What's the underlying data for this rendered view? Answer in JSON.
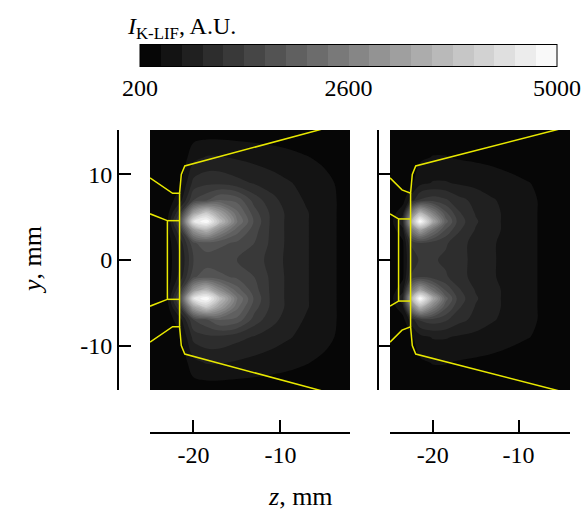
{
  "chart_data": {
    "type": "contour",
    "xlabel": "z, mm",
    "ylabel": "y, mm",
    "ylim": [
      -15.2,
      15.2
    ],
    "yticks": [
      -10,
      0,
      10
    ],
    "colorbar": {
      "title": "I",
      "title_subscript": "K-LIF",
      "title_suffix": ", A.U.",
      "range": [
        200,
        5000
      ],
      "ticks": [
        200,
        2600,
        5000
      ]
    },
    "panels": [
      {
        "xlim": [
          -25,
          -2
        ],
        "xticks": [
          -20,
          -10
        ],
        "x": [
          -25,
          -23,
          -21.5,
          -20,
          -18.5,
          -17,
          -15,
          -13,
          -11,
          -9,
          -7,
          -5,
          -3,
          -2
        ],
        "y": [
          -15.2,
          -12,
          -9,
          -7,
          -5.5,
          -4.5,
          -3.5,
          -2,
          0,
          2,
          3.5,
          4.5,
          5.5,
          7,
          9,
          12,
          15.2
        ],
        "z": [
          [
            250,
            250,
            250,
            300,
            300,
            300,
            300,
            300,
            300,
            300,
            300,
            250,
            250,
            250
          ],
          [
            250,
            250,
            250,
            600,
            700,
            700,
            650,
            600,
            550,
            500,
            450,
            400,
            300,
            250
          ],
          [
            300,
            300,
            400,
            1000,
            1100,
            1100,
            1000,
            900,
            800,
            700,
            600,
            500,
            400,
            300
          ],
          [
            300,
            300,
            600,
            1400,
            1600,
            1900,
            1800,
            1300,
            1000,
            800,
            650,
            550,
            400,
            300
          ],
          [
            300,
            350,
            1200,
            3200,
            4000,
            3200,
            2200,
            1500,
            1100,
            850,
            700,
            550,
            400,
            300
          ],
          [
            300,
            400,
            1600,
            4500,
            5000,
            3800,
            2400,
            1600,
            1100,
            850,
            700,
            550,
            400,
            300
          ],
          [
            300,
            350,
            1200,
            3000,
            3600,
            2800,
            2000,
            1500,
            1100,
            850,
            700,
            550,
            400,
            300
          ],
          [
            300,
            300,
            800,
            1600,
            1800,
            1700,
            1600,
            1400,
            1100,
            850,
            700,
            550,
            400,
            300
          ],
          [
            300,
            300,
            700,
            1400,
            1500,
            1500,
            1400,
            1300,
            1050,
            850,
            700,
            550,
            400,
            300
          ],
          [
            300,
            300,
            800,
            1600,
            1800,
            1700,
            1600,
            1400,
            1100,
            850,
            700,
            550,
            400,
            300
          ],
          [
            300,
            350,
            1200,
            3000,
            3600,
            2800,
            2000,
            1500,
            1100,
            850,
            700,
            550,
            400,
            300
          ],
          [
            300,
            400,
            1600,
            4500,
            5000,
            3800,
            2400,
            1600,
            1100,
            850,
            700,
            550,
            400,
            300
          ],
          [
            300,
            350,
            1200,
            3200,
            4000,
            3200,
            2200,
            1500,
            1100,
            850,
            700,
            550,
            400,
            300
          ],
          [
            300,
            300,
            600,
            1400,
            1600,
            1900,
            1800,
            1300,
            1000,
            800,
            650,
            550,
            400,
            300
          ],
          [
            300,
            300,
            400,
            1000,
            1100,
            1100,
            1000,
            900,
            800,
            700,
            600,
            500,
            400,
            300
          ],
          [
            250,
            250,
            250,
            600,
            700,
            700,
            650,
            600,
            550,
            500,
            450,
            400,
            300,
            250
          ],
          [
            250,
            250,
            250,
            300,
            300,
            300,
            300,
            300,
            300,
            300,
            300,
            250,
            250,
            250
          ]
        ],
        "outline": {
          "x": [
            -25,
            -22.4,
            -21.6,
            -21.4,
            -21.0,
            -4.5,
            null,
            -25,
            -22.4,
            -21.6,
            -21.4,
            -21.0,
            -4.5,
            null,
            -25,
            -23,
            -23,
            -25,
            null,
            -23,
            -21.6,
            null,
            -23,
            -21.6,
            null,
            -21.6,
            -21.6
          ],
          "y": [
            9.6,
            7.8,
            7.8,
            10,
            11,
            15.5,
            null,
            -9.6,
            -7.8,
            -7.8,
            -10,
            -11,
            -15.5,
            null,
            5.4,
            4.6,
            -4.6,
            -5.4,
            null,
            4.6,
            4.6,
            null,
            -4.6,
            -4.6,
            null,
            7.8,
            -7.8
          ]
        }
      },
      {
        "xlim": [
          -25,
          -4
        ],
        "xticks": [
          -20,
          -10
        ],
        "tick_labels": "x",
        "x": [
          -25,
          -23.5,
          -22.5,
          -21.5,
          -20,
          -18.5,
          -17,
          -15,
          -13,
          -11,
          -9,
          -7,
          -5,
          -4
        ],
        "y": [
          -15.2,
          -12,
          -9,
          -7,
          -5.5,
          -4.5,
          -3.5,
          -2,
          0,
          2,
          3.5,
          4.5,
          5.5,
          7,
          9,
          12,
          15.2
        ],
        "z": [
          [
            250,
            250,
            250,
            250,
            300,
            300,
            300,
            300,
            300,
            300,
            250,
            250,
            250,
            250
          ],
          [
            250,
            250,
            300,
            400,
            450,
            450,
            420,
            400,
            380,
            350,
            320,
            300,
            250,
            250
          ],
          [
            300,
            300,
            400,
            600,
            700,
            700,
            650,
            600,
            550,
            500,
            450,
            400,
            300,
            250
          ],
          [
            300,
            350,
            800,
            1200,
            1300,
            1200,
            1000,
            850,
            700,
            600,
            500,
            400,
            300,
            250
          ],
          [
            300,
            600,
            2500,
            3600,
            2600,
            1700,
            1200,
            900,
            750,
            600,
            500,
            400,
            300,
            250
          ],
          [
            300,
            900,
            3500,
            5000,
            3400,
            2000,
            1300,
            950,
            750,
            600,
            500,
            400,
            300,
            250
          ],
          [
            300,
            600,
            2400,
            3200,
            2300,
            1600,
            1200,
            900,
            750,
            600,
            500,
            400,
            300,
            250
          ],
          [
            300,
            400,
            1200,
            1400,
            1300,
            1200,
            1000,
            850,
            700,
            600,
            500,
            400,
            300,
            250
          ],
          [
            300,
            400,
            1000,
            1200,
            1200,
            1100,
            1000,
            850,
            700,
            600,
            500,
            400,
            300,
            250
          ],
          [
            300,
            400,
            1200,
            1400,
            1300,
            1200,
            1000,
            850,
            700,
            600,
            500,
            400,
            300,
            250
          ],
          [
            300,
            600,
            2400,
            3200,
            2300,
            1600,
            1200,
            900,
            750,
            600,
            500,
            400,
            300,
            250
          ],
          [
            300,
            900,
            3500,
            5000,
            3400,
            2000,
            1300,
            950,
            750,
            600,
            500,
            400,
            300,
            250
          ],
          [
            300,
            600,
            2500,
            3600,
            2600,
            1700,
            1200,
            900,
            750,
            600,
            500,
            400,
            300,
            250
          ],
          [
            300,
            350,
            800,
            1200,
            1300,
            1200,
            1000,
            850,
            700,
            600,
            500,
            400,
            300,
            250
          ],
          [
            300,
            300,
            400,
            600,
            700,
            700,
            650,
            600,
            550,
            500,
            450,
            400,
            300,
            250
          ],
          [
            250,
            250,
            300,
            400,
            450,
            450,
            420,
            400,
            380,
            350,
            320,
            300,
            250,
            250
          ],
          [
            250,
            250,
            250,
            250,
            300,
            300,
            300,
            300,
            300,
            300,
            250,
            250,
            250,
            250
          ]
        ],
        "outline": {
          "x": [
            -25,
            -23.6,
            -22.6,
            -22.4,
            -22.0,
            -4.5,
            null,
            -25,
            -23.6,
            -22.6,
            -22.4,
            -22.0,
            -4.5,
            null,
            -25,
            -24,
            -24,
            -25,
            null,
            -24,
            -22.6,
            null,
            -24,
            -22.6,
            null,
            -22.6,
            -22.6
          ],
          "y": [
            9.6,
            8.2,
            7.8,
            10,
            11,
            15.5,
            null,
            -9.6,
            -8.2,
            -7.8,
            -10,
            -11,
            -15.5,
            null,
            5.4,
            4.8,
            -4.8,
            -5.4,
            null,
            4.8,
            4.8,
            null,
            -4.8,
            -4.8,
            null,
            7.8,
            -7.8
          ]
        }
      }
    ]
  }
}
